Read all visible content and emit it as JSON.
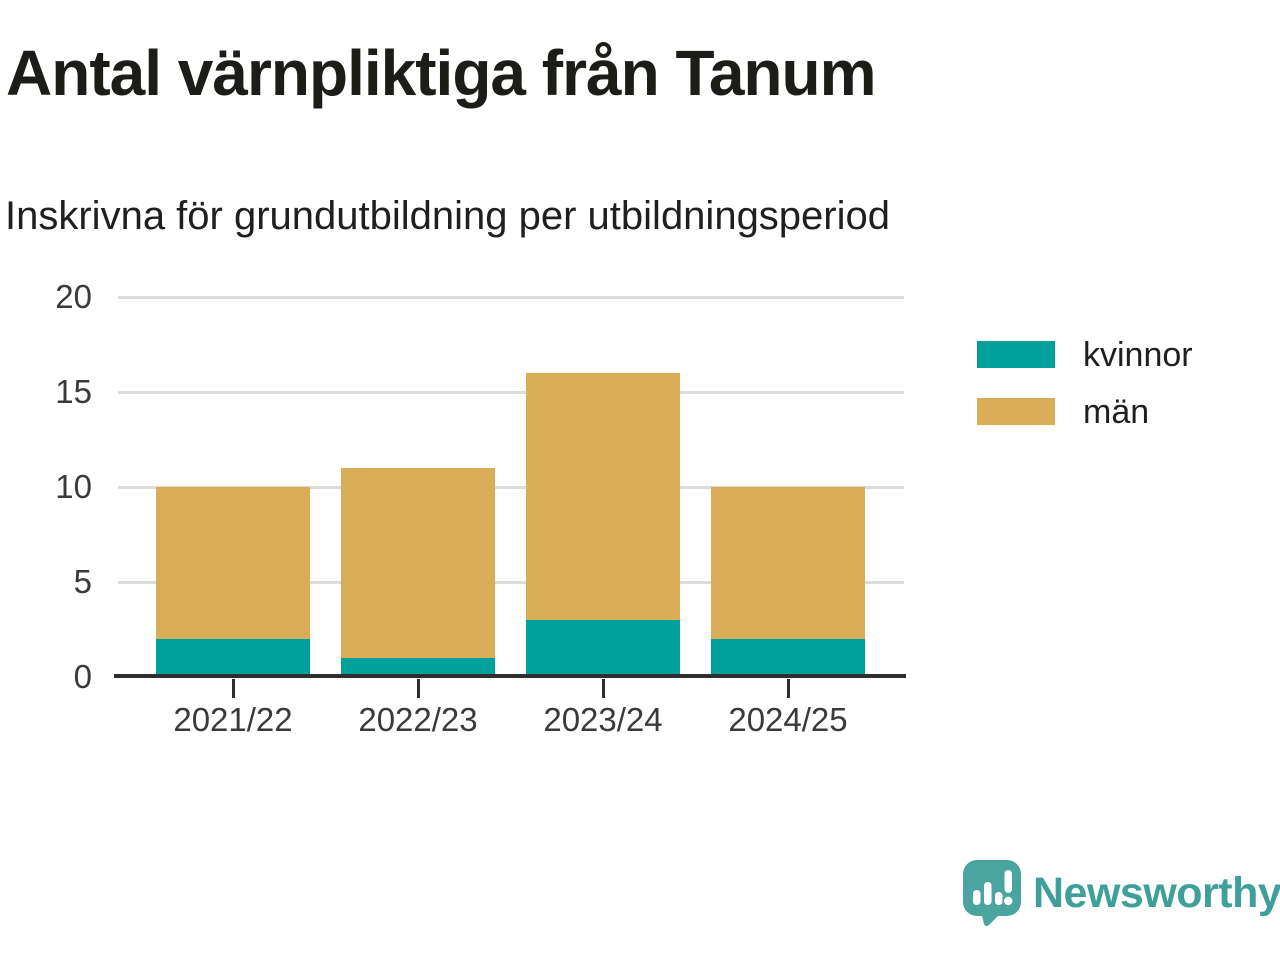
{
  "header": {
    "title": "Antal värnpliktiga från Tanum",
    "subtitle": "Inskrivna för grundutbildning per utbildningsperiod"
  },
  "chart_data": {
    "type": "bar",
    "stacked": true,
    "title": "Antal värnpliktiga från Tanum",
    "subtitle": "Inskrivna för grundutbildning per utbildningsperiod",
    "categories": [
      "2021/22",
      "2022/23",
      "2023/24",
      "2024/25"
    ],
    "series": [
      {
        "name": "kvinnor",
        "color": "#00a19a",
        "values": [
          2,
          1,
          3,
          2
        ]
      },
      {
        "name": "män",
        "color": "#d9ac57",
        "values": [
          8,
          10,
          13,
          8
        ]
      }
    ],
    "stack_totals": [
      10,
      11,
      16,
      10
    ],
    "xlabel": "",
    "ylabel": "",
    "ylim": [
      0,
      20
    ],
    "yticks": [
      0,
      5,
      10,
      15,
      20
    ],
    "grid": true,
    "legend_position": "right"
  },
  "legend": {
    "items": [
      {
        "label": "kvinnor",
        "color": "#00a19a"
      },
      {
        "label": "män",
        "color": "#d9ac57"
      }
    ]
  },
  "branding": {
    "name": "Newsworthy",
    "text_color": "#3fa09a",
    "icon_color": "#4aa5a0",
    "icon": "newsworthy-speech-bubble-chart-icon"
  },
  "colors": {
    "grid": "#dcdcdc",
    "axis": "#2d2d2d",
    "tick_label": "#3a3a3a"
  }
}
